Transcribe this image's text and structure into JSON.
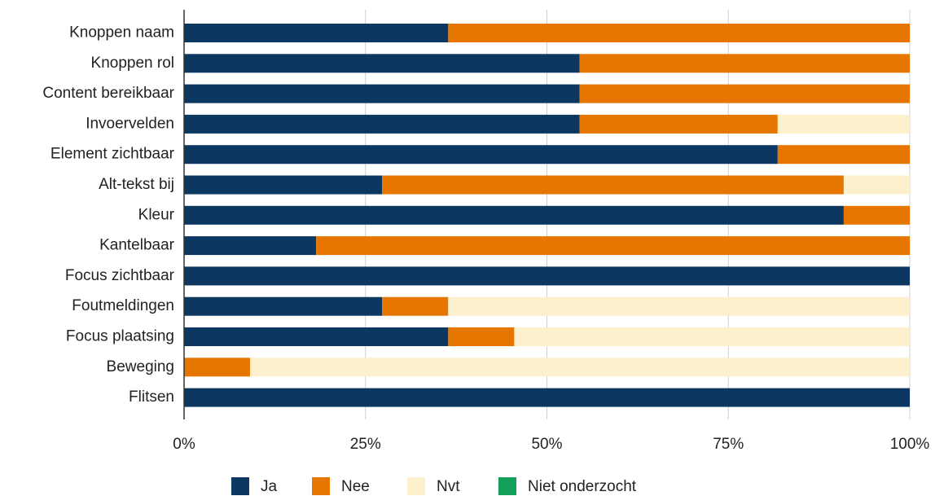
{
  "chart_data": {
    "type": "stacked_barh",
    "categories": [
      "Knoppen naam",
      "Knoppen rol",
      "Content bereikbaar",
      "Invoervelden",
      "Element zichtbaar",
      "Alt-tekst bij",
      "Kleur",
      "Kantelbaar",
      "Focus zichtbaar",
      "Foutmeldingen",
      "Focus plaatsing",
      "Beweging",
      "Flitsen"
    ],
    "series": [
      {
        "name": "Ja",
        "color": "#0b3760",
        "values": [
          36.4,
          54.5,
          54.5,
          54.5,
          81.8,
          27.3,
          90.9,
          18.2,
          100,
          27.3,
          36.4,
          0,
          100
        ]
      },
      {
        "name": "Nee",
        "color": "#e67600",
        "values": [
          63.6,
          45.5,
          45.5,
          27.3,
          18.2,
          63.6,
          9.1,
          81.8,
          0,
          9.1,
          9.1,
          9.1,
          0
        ]
      },
      {
        "name": "Nvt",
        "color": "#fdf0cd",
        "values": [
          0,
          0,
          0,
          18.2,
          0,
          9.1,
          0,
          0,
          0,
          63.6,
          54.5,
          90.9,
          0
        ]
      },
      {
        "name": "Niet onderzocht",
        "color": "#13a05a",
        "values": [
          0,
          0,
          0,
          0,
          0,
          0,
          0,
          0,
          0,
          0,
          0,
          0,
          0
        ]
      }
    ],
    "xlim": [
      0,
      100
    ],
    "xticks": [
      {
        "value": 0,
        "label": "0%"
      },
      {
        "value": 25,
        "label": "25%"
      },
      {
        "value": 50,
        "label": "50%"
      },
      {
        "value": 75,
        "label": "75%"
      },
      {
        "value": 100,
        "label": "100%"
      }
    ],
    "grid": true,
    "legend": "bottom"
  }
}
